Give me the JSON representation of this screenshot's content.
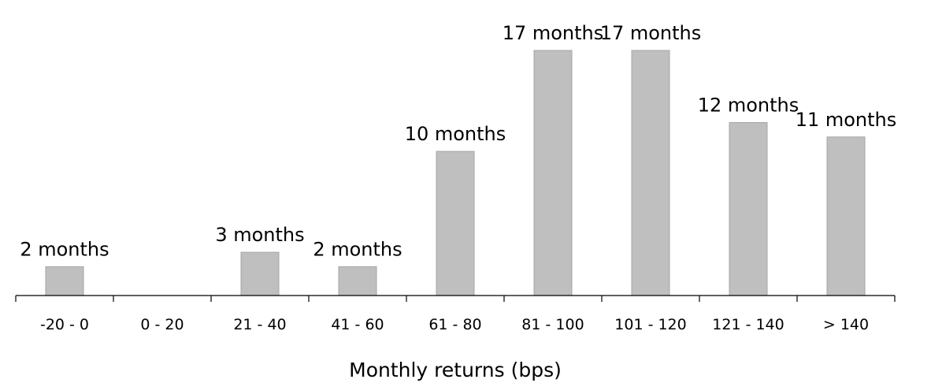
{
  "chart_data": {
    "type": "bar",
    "title": "",
    "xlabel": "Monthly returns (bps)",
    "ylabel": "",
    "categories": [
      "-20 - 0",
      "0 - 20",
      "21 - 40",
      "41 - 60",
      "61 - 80",
      "81 - 100",
      "101 - 120",
      "121 - 140",
      "> 140"
    ],
    "values": [
      2,
      0,
      3,
      2,
      10,
      17,
      17,
      12,
      11
    ],
    "data_labels": [
      "2 months",
      "",
      "3 months",
      "2 months",
      "10 months",
      "17 months",
      "17 months",
      "12 months",
      "11 months"
    ],
    "ylim": [
      0,
      17
    ],
    "grid": false,
    "bar_color": "#bfbfbf"
  }
}
